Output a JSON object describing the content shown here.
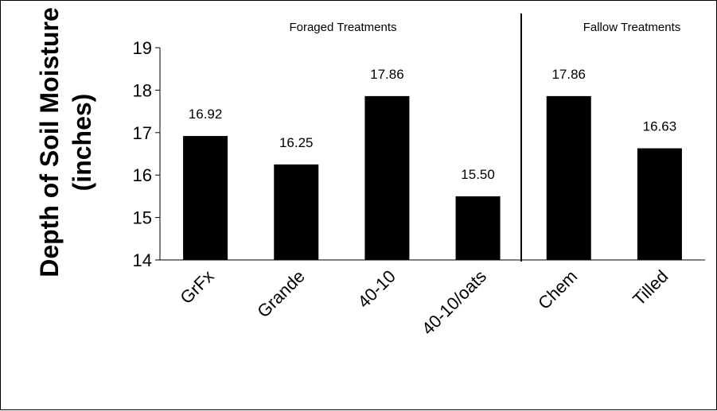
{
  "chart_data": {
    "type": "bar",
    "ylabel_line1": "Depth of Soil Moisture",
    "ylabel_line2": "(inches)",
    "categories": [
      "GrFx",
      "Grande",
      "40-10",
      "40-10/oats",
      "Chem",
      "Tilled"
    ],
    "values": [
      16.92,
      16.25,
      17.86,
      15.5,
      17.86,
      16.63
    ],
    "data_labels": [
      "16.92",
      "16.25",
      "17.86",
      "15.50",
      "17.86",
      "16.63"
    ],
    "ylim": [
      14,
      19
    ],
    "yticks": [
      "14",
      "15",
      "16",
      "17",
      "18",
      "19"
    ],
    "grid": false,
    "legend": "none",
    "bar_color": "#000000",
    "group_labels": {
      "foraged": "Foraged Treatments",
      "fallow": "Fallow Treatments"
    }
  }
}
